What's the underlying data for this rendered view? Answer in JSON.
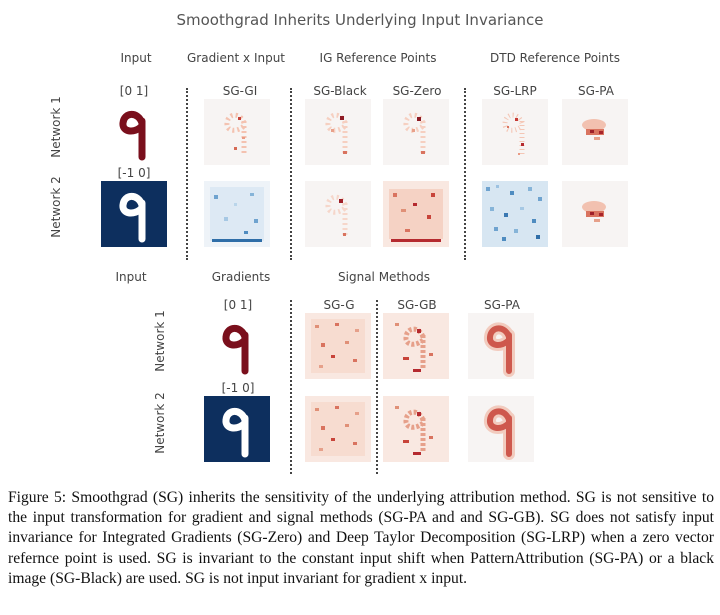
{
  "figure": {
    "title": "Smoothgrad Inherits Underlying Input Invariance",
    "top": {
      "headers": {
        "input": "Input",
        "gradient_x_input": "Gradient x Input",
        "ig_reference_points": "IG Reference Points",
        "dtd_reference_points": "DTD Reference Points"
      },
      "columns": {
        "sg_gi": "SG-GI",
        "sg_black": "SG-Black",
        "sg_zero": "SG-Zero",
        "sg_lrp": "SG-LRP",
        "sg_pa": "SG-PA"
      },
      "ranges": {
        "network1": "[0 1]",
        "network2": "[-1 0]"
      },
      "rows": {
        "network1": "Network 1",
        "network2": "Network 2"
      }
    },
    "bottom": {
      "headers": {
        "input": "Input",
        "gradients": "Gradients",
        "signal_methods": "Signal Methods"
      },
      "columns": {
        "sg_g": "SG-G",
        "sg_gb": "SG-GB",
        "sg_pa": "SG-PA"
      },
      "ranges": {
        "network1": "[0 1]",
        "network2": "[-1 0]"
      },
      "rows": {
        "network1": "Network 1",
        "network2": "Network 2"
      }
    }
  },
  "caption": "Figure 5: Smoothgrad (SG) inherits the sensitivity of the underlying attribution method. SG is not sensitive to the input transformation for gradient and signal methods (SG-PA and and SG-GB). SG does not satisfy input invariance for Integrated Gradients (SG-Zero) and Deep Taylor Decomposition (SG-LRP) when a zero vector refernce point is used. SG is invariant to the constant input shift when PatternAttribution (SG-PA) or a black image (SG-Black) are used.  SG is not input invariant for gradient x input.",
  "colors": {
    "digit_red": "#7a0f1c",
    "digit_bg_dark": "#0d2f5e",
    "heat_red": "#b2182b",
    "heat_blue": "#2166ac",
    "tile_bg": "#f7f4f3"
  }
}
